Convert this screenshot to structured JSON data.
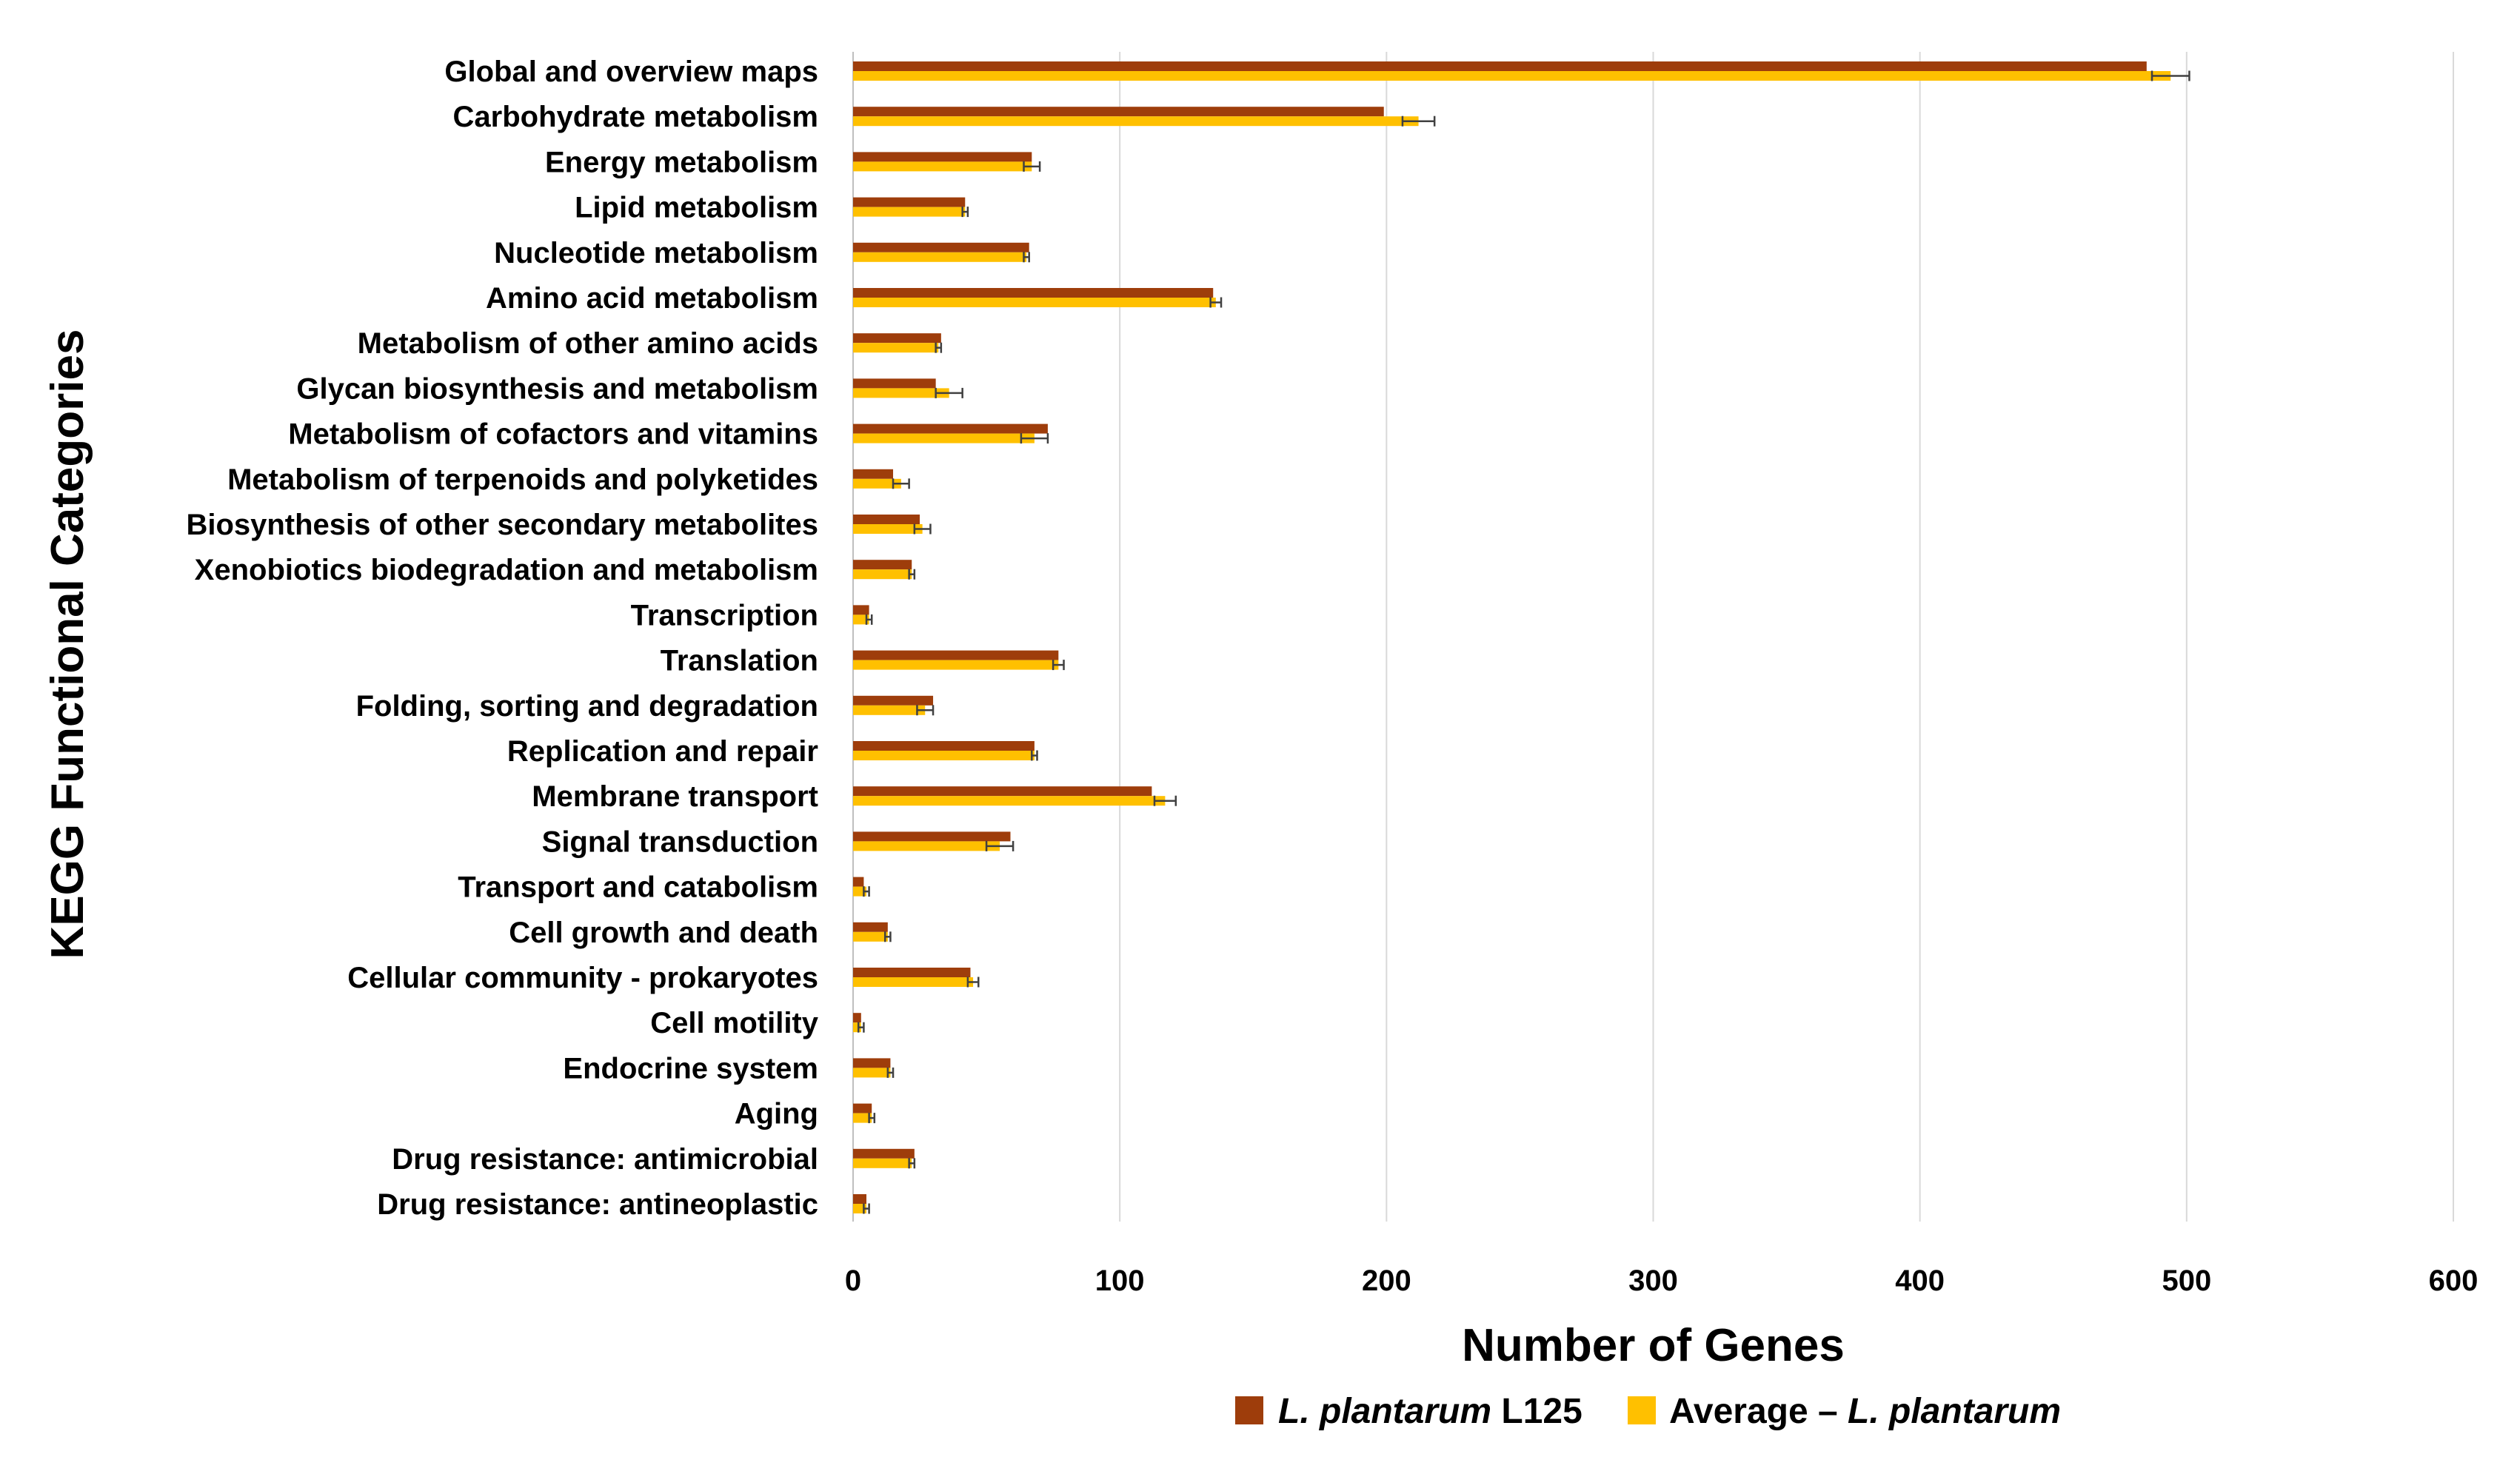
{
  "chart_data": {
    "type": "bar",
    "orientation": "horizontal",
    "title": "",
    "xlabel": "Number of Genes",
    "ylabel": "KEGG Functional Categories",
    "xlim": [
      0,
      600
    ],
    "xticks": [
      0,
      100,
      200,
      300,
      400,
      500,
      600
    ],
    "xtick_labels": [
      "0",
      "100",
      "200",
      "300",
      "400",
      "500",
      "600"
    ],
    "grid": "vertical",
    "legend_position": "bottom-center",
    "categories": [
      "Global and overview maps",
      "Carbohydrate metabolism",
      "Energy metabolism",
      "Lipid metabolism",
      "Nucleotide metabolism",
      "Amino acid metabolism",
      "Metabolism of other amino acids",
      "Glycan biosynthesis and metabolism",
      "Metabolism of cofactors and vitamins",
      "Metabolism of terpenoids and polyketides",
      "Biosynthesis of other secondary metabolites",
      "Xenobiotics biodegradation and metabolism",
      "Transcription",
      "Translation",
      "Folding, sorting and degradation",
      "Replication and repair",
      "Membrane transport",
      "Signal transduction",
      "Transport and catabolism",
      "Cell growth and death",
      "Cellular community - prokaryotes",
      "Cell motility",
      "Endocrine system",
      "Aging",
      "Drug resistance: antimicrobial",
      "Drug resistance: antineoplastic"
    ],
    "series": [
      {
        "name": "L. plantarum L125",
        "legend_italic": "L. plantarum",
        "legend_plain": " L125",
        "color": "#9E3D0B",
        "values": [
          485,
          199,
          67,
          42,
          66,
          135,
          33,
          31,
          73,
          15,
          25,
          22,
          6,
          77,
          30,
          68,
          112,
          59,
          4,
          13,
          44,
          3,
          14,
          7,
          23,
          5
        ]
      },
      {
        "name": "Average – L. plantarum",
        "legend_plain": "Average – ",
        "legend_italic": "L. plantarum",
        "color": "#FFC000",
        "values": [
          494,
          212,
          67,
          42,
          65,
          136,
          32,
          36,
          68,
          18,
          26,
          22,
          6,
          77,
          27,
          68,
          117,
          55,
          5,
          13,
          45,
          3,
          14,
          7,
          22,
          5
        ],
        "errors": [
          7,
          6,
          3,
          1,
          1,
          2,
          1,
          5,
          5,
          3,
          3,
          1,
          1,
          2,
          3,
          1,
          4,
          5,
          1,
          1,
          2,
          1,
          1,
          1,
          1,
          1
        ]
      }
    ]
  }
}
